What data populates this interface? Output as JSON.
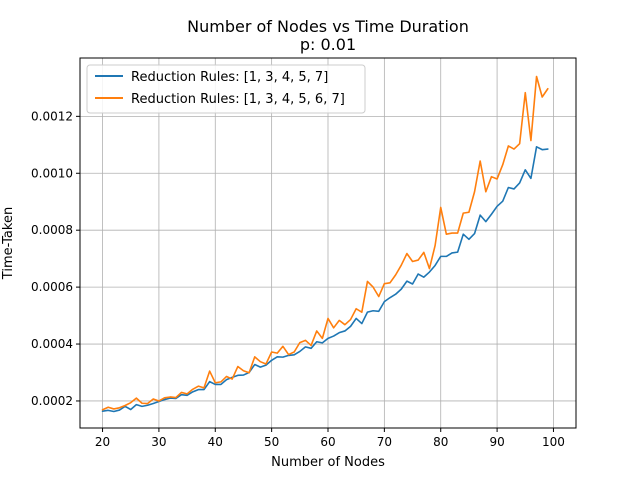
{
  "chart_data": {
    "type": "line",
    "title": "Number of Nodes vs Time Duration",
    "subtitle": "p: 0.01",
    "xlabel": "Number of Nodes",
    "ylabel": "Time-Taken",
    "xlim": [
      16,
      104
    ],
    "ylim": [
      0.000105,
      0.001405
    ],
    "xticks": [
      20,
      30,
      40,
      50,
      60,
      70,
      80,
      90,
      100
    ],
    "yticks": [
      0.0002,
      0.0004,
      0.0006,
      0.0008,
      0.001,
      0.0012
    ],
    "ytick_labels": [
      "0.0002",
      "0.0004",
      "0.0006",
      "0.0008",
      "0.0010",
      "0.0012"
    ],
    "grid": true,
    "legend_position": "top-left",
    "x": [
      20,
      21,
      22,
      23,
      24,
      25,
      26,
      27,
      28,
      29,
      30,
      31,
      32,
      33,
      34,
      35,
      36,
      37,
      38,
      39,
      40,
      41,
      42,
      43,
      44,
      45,
      46,
      47,
      48,
      49,
      50,
      51,
      52,
      53,
      54,
      55,
      56,
      57,
      58,
      59,
      60,
      61,
      62,
      63,
      64,
      65,
      66,
      67,
      68,
      69,
      70,
      71,
      72,
      73,
      74,
      75,
      76,
      77,
      78,
      79,
      80,
      81,
      82,
      83,
      84,
      85,
      86,
      87,
      88,
      89,
      90,
      91,
      92,
      93,
      94,
      95,
      96,
      97,
      98,
      99
    ],
    "series": [
      {
        "name": "Reduction Rules: [1, 3, 4, 5, 7]",
        "color": "#1f77b4",
        "values": [
          0.000164,
          0.000167,
          0.000163,
          0.000168,
          0.000181,
          0.00017,
          0.000187,
          0.000181,
          0.000185,
          0.000191,
          0.000198,
          0.000205,
          0.00021,
          0.000209,
          0.000222,
          0.00022,
          0.000232,
          0.00024,
          0.00024,
          0.000268,
          0.000258,
          0.000258,
          0.000275,
          0.000283,
          0.00029,
          0.000291,
          0.0003,
          0.000328,
          0.000319,
          0.000326,
          0.000343,
          0.000355,
          0.000354,
          0.00036,
          0.000362,
          0.000374,
          0.00039,
          0.000385,
          0.000408,
          0.000404,
          0.00042,
          0.000428,
          0.00044,
          0.000446,
          0.000462,
          0.00049,
          0.000472,
          0.000512,
          0.000517,
          0.000515,
          0.000549,
          0.000563,
          0.000575,
          0.000593,
          0.000621,
          0.000611,
          0.000646,
          0.000635,
          0.000653,
          0.000676,
          0.000708,
          0.000708,
          0.00072,
          0.000723,
          0.000786,
          0.000768,
          0.000788,
          0.000853,
          0.00083,
          0.000856,
          0.000884,
          0.000902,
          0.00095,
          0.000945,
          0.000966,
          0.001012,
          0.000982,
          0.001093,
          0.001083,
          0.001085
        ]
      },
      {
        "name": "Reduction Rules: [1, 3, 4, 5, 6, 7]",
        "color": "#ff7f0e",
        "values": [
          0.000169,
          0.000178,
          0.000172,
          0.000176,
          0.000184,
          0.000194,
          0.00021,
          0.000192,
          0.000191,
          0.000207,
          0.0002,
          0.000211,
          0.000214,
          0.000212,
          0.00023,
          0.000225,
          0.000241,
          0.000252,
          0.000246,
          0.000305,
          0.000264,
          0.000267,
          0.000286,
          0.000277,
          0.000321,
          0.000306,
          0.000299,
          0.000355,
          0.000338,
          0.00033,
          0.000372,
          0.000368,
          0.000392,
          0.000363,
          0.000372,
          0.000405,
          0.000413,
          0.000395,
          0.000446,
          0.00042,
          0.00049,
          0.000457,
          0.000483,
          0.000468,
          0.000486,
          0.000524,
          0.000512,
          0.00062,
          0.0006,
          0.000567,
          0.000612,
          0.000615,
          0.000643,
          0.000677,
          0.000718,
          0.00069,
          0.000695,
          0.000722,
          0.000665,
          0.000746,
          0.00088,
          0.000786,
          0.00079,
          0.00079,
          0.00086,
          0.000863,
          0.000935,
          0.001043,
          0.000935,
          0.000988,
          0.00098,
          0.00103,
          0.001096,
          0.001085,
          0.001104,
          0.001283,
          0.001115,
          0.00134,
          0.001268,
          0.001297
        ]
      }
    ]
  }
}
